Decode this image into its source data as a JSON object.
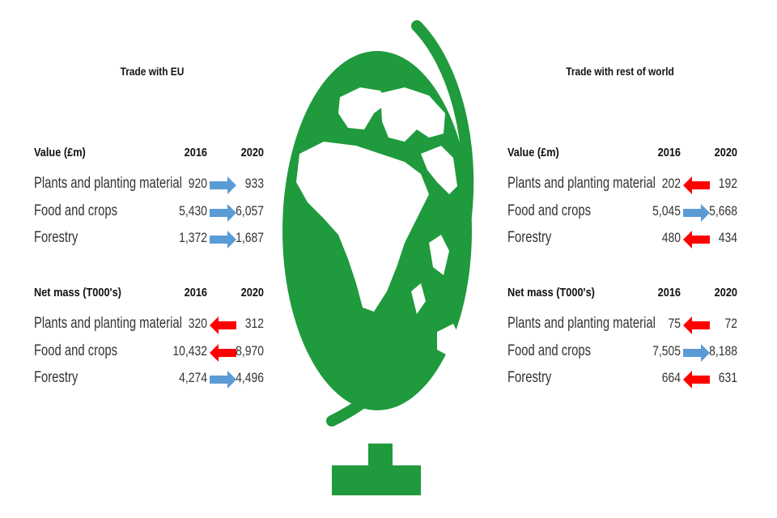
{
  "colors": {
    "globe": "#1f9a3c",
    "increase": "#5b9bd5",
    "decrease": "#ff0000"
  },
  "panels": [
    {
      "title": "Trade with EU",
      "sections": [
        {
          "heading": "Value (£m)",
          "year_a": "2016",
          "year_b": "2020",
          "rows": [
            {
              "label": "Plants and planting material",
              "v2016": "920",
              "v2020": "933",
              "trend": "increase"
            },
            {
              "label": "Food and crops",
              "v2016": "5,430",
              "v2020": "6,057",
              "trend": "increase"
            },
            {
              "label": "Forestry",
              "v2016": "1,372",
              "v2020": "1,687",
              "trend": "increase"
            }
          ]
        },
        {
          "heading": "Net mass (T000's)",
          "year_a": "2016",
          "year_b": "2020",
          "rows": [
            {
              "label": "Plants and planting material",
              "v2016": "320",
              "v2020": "312",
              "trend": "decrease"
            },
            {
              "label": "Food and crops",
              "v2016": "10,432",
              "v2020": "8,970",
              "trend": "decrease"
            },
            {
              "label": "Forestry",
              "v2016": "4,274",
              "v2020": "4,496",
              "trend": "increase"
            }
          ]
        }
      ]
    },
    {
      "title": "Trade with rest of world",
      "sections": [
        {
          "heading": "Value (£m)",
          "year_a": "2016",
          "year_b": "2020",
          "rows": [
            {
              "label": "Plants and planting material",
              "v2016": "202",
              "v2020": "192",
              "trend": "decrease"
            },
            {
              "label": "Food and crops",
              "v2016": "5,045",
              "v2020": "5,668",
              "trend": "increase"
            },
            {
              "label": "Forestry",
              "v2016": "480",
              "v2020": "434",
              "trend": "decrease"
            }
          ]
        },
        {
          "heading": "Net mass (T000's)",
          "year_a": "2016",
          "year_b": "2020",
          "rows": [
            {
              "label": "Plants and planting material",
              "v2016": "75",
              "v2020": "72",
              "trend": "decrease"
            },
            {
              "label": "Food and crops",
              "v2016": "7,505",
              "v2020": "8,188",
              "trend": "increase"
            },
            {
              "label": "Forestry",
              "v2016": "664",
              "v2020": "631",
              "trend": "decrease"
            }
          ]
        }
      ]
    }
  ]
}
